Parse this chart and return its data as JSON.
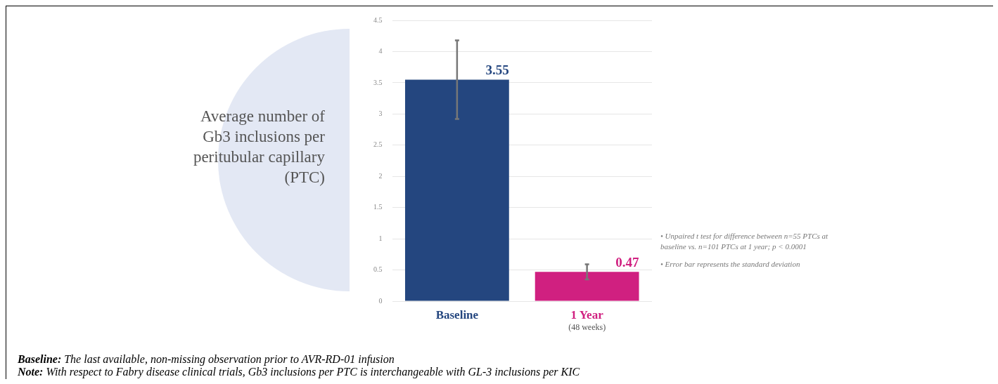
{
  "chart_data": {
    "type": "bar",
    "ylabel": "Average number of Gb3 inclusions per peritubular capillary (PTC)",
    "categories": [
      "Baseline",
      "1 Year\n(48 weeks)"
    ],
    "values": [
      3.55,
      0.47
    ],
    "colors": [
      "#24467f",
      "#d02080"
    ],
    "errors": [
      0.63,
      0.12
    ],
    "data_labels": true,
    "ylim": [
      0,
      4.5
    ],
    "yticks": [
      0,
      0.5,
      1,
      1.5,
      2,
      2.5,
      3,
      3.5,
      4,
      4.5
    ],
    "grid": "y",
    "legend": false,
    "annotations": [
      "• Unpaired t test for difference between n=55 PTCs at baseline vs. n=101 PTCs at 1 year; p < 0.0001",
      "• Error bar represents the standard deviation",
      "Baseline: The last available, non-missing observation prior to AVR-RD-01 infusion",
      "Note: With respect to Fabry disease clinical trials, Gb3 inclusions per PTC is interchangeable with GL-3 inclusions per KIC"
    ]
  }
}
